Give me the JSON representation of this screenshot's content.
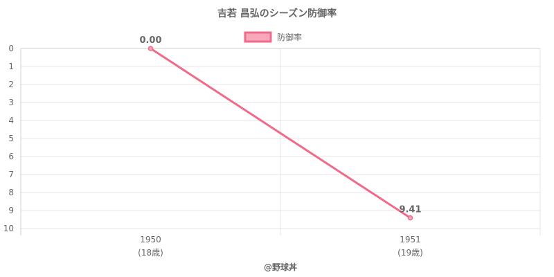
{
  "chart_data": {
    "type": "line",
    "title": "吉若 昌弘のシーズン防御率",
    "categories": [
      "1950",
      "1951"
    ],
    "category_sublabels": [
      "(18歳)",
      "(19歳)"
    ],
    "series": [
      {
        "name": "防御率",
        "values": [
          0.0,
          9.41
        ],
        "labels": [
          "0.00",
          "9.41"
        ]
      }
    ],
    "ylim": [
      0,
      10
    ],
    "y_reversed": true,
    "yticks": [
      "0",
      "1",
      "2",
      "3",
      "4",
      "5",
      "6",
      "7",
      "8",
      "9",
      "10"
    ],
    "grid": true,
    "legend_position": "top",
    "xlabel": "",
    "ylabel": "",
    "credit": "@野球丼",
    "colors": {
      "line": "#f06b8a",
      "fill": "#f7a8bb",
      "grid": "#e6e6e6",
      "text": "#666666"
    }
  }
}
